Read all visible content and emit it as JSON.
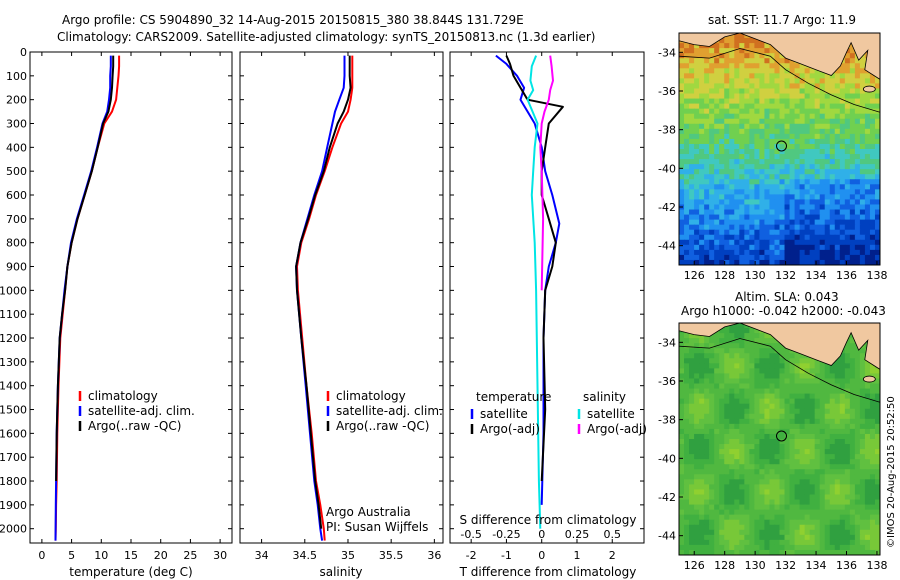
{
  "header": {
    "line1": "Argo profile: CS 5904890_32 14-Aug-2015 20150815_380 38.844S 131.729E",
    "line2": "Climatology: CARS2009. Satellite-adjusted climatology: synTS_20150813.nc (1.3d earlier)"
  },
  "colors": {
    "climatology": "#ff0000",
    "satellite": "#0000ff",
    "argo": "#000000",
    "salinity_satellite": "#00e5e5",
    "salinity_argo": "#ff00ff",
    "land": "#f0c8a0"
  },
  "chart_data": [
    {
      "type": "line",
      "name": "temperature-profile",
      "xlabel": "temperature (deg C)",
      "xlim": [
        -2,
        32
      ],
      "xticks": [
        "0",
        "5",
        "10",
        "15",
        "20",
        "25",
        "30"
      ],
      "ylim": [
        2060,
        0
      ],
      "yticks": [
        "0",
        "100",
        "200",
        "300",
        "400",
        "500",
        "600",
        "700",
        "800",
        "900",
        "1000",
        "1100",
        "1200",
        "1300",
        "1400",
        "1500",
        "1600",
        "1700",
        "1800",
        "1900",
        "2000"
      ],
      "legend": [
        "climatology",
        "satellite-adj. clim.",
        "Argo(..raw -QC)"
      ],
      "series": [
        {
          "name": "climatology",
          "color": "#ff0000",
          "x": [
            13.0,
            13.0,
            12.9,
            12.7,
            12.5,
            11.8,
            10.5,
            9.4,
            8.4,
            7.2,
            6.0,
            5.0,
            4.3,
            3.9,
            3.5,
            3.1,
            2.8,
            2.6,
            2.5,
            2.4,
            2.35,
            2.3
          ],
          "y": [
            15,
            60,
            100,
            150,
            200,
            250,
            300,
            400,
            500,
            600,
            700,
            800,
            900,
            1000,
            1100,
            1200,
            1400,
            1600,
            1800,
            1900,
            2000,
            2050
          ]
        },
        {
          "name": "satellite-adj. clim.",
          "color": "#0000ff",
          "x": [
            11.6,
            11.6,
            11.5,
            11.5,
            11.3,
            11.0,
            10.2,
            9.3,
            8.3,
            7.1,
            5.9,
            4.9,
            4.3,
            3.8,
            3.4,
            3.0,
            2.7,
            2.5,
            2.4,
            2.35,
            2.3
          ],
          "y": [
            15,
            60,
            100,
            150,
            200,
            250,
            300,
            400,
            500,
            600,
            700,
            800,
            900,
            1000,
            1100,
            1200,
            1400,
            1600,
            1800,
            1900,
            2050
          ]
        },
        {
          "name": "Argo(..raw -QC)",
          "color": "#000000",
          "x": [
            12.0,
            12.0,
            11.9,
            11.8,
            11.6,
            11.2,
            10.3,
            9.4,
            8.4,
            7.2,
            6.0,
            5.0,
            4.3,
            3.9,
            3.4,
            3.0,
            2.7,
            2.5,
            2.4
          ],
          "y": [
            15,
            60,
            100,
            150,
            200,
            250,
            300,
            400,
            500,
            600,
            700,
            800,
            900,
            1000,
            1100,
            1200,
            1400,
            1600,
            1800
          ]
        }
      ]
    },
    {
      "type": "line",
      "name": "salinity-profile",
      "xlabel": "salinity",
      "xlim": [
        33.75,
        36.1
      ],
      "xticks": [
        "34",
        "34.5",
        "35",
        "35.5",
        "36"
      ],
      "ylim": [
        2060,
        0
      ],
      "legend": [
        "climatology",
        "satellite-adj. clim.",
        "Argo(..raw -QC)"
      ],
      "annotation": [
        "Argo Australia",
        "PI: Susan Wijffels"
      ],
      "series": [
        {
          "name": "climatology",
          "color": "#ff0000",
          "x": [
            35.05,
            35.05,
            35.05,
            35.03,
            35.0,
            34.92,
            34.82,
            34.73,
            34.63,
            34.55,
            34.46,
            34.41,
            34.42,
            34.47,
            34.52,
            34.58,
            34.63,
            34.68,
            34.72,
            34.73
          ],
          "y": [
            15,
            100,
            150,
            200,
            250,
            300,
            400,
            500,
            600,
            700,
            800,
            900,
            1000,
            1200,
            1400,
            1600,
            1800,
            1900,
            2000,
            2050
          ]
        },
        {
          "name": "satellite-adj. clim.",
          "color": "#0000ff",
          "x": [
            34.96,
            34.96,
            34.95,
            34.9,
            34.85,
            34.82,
            34.76,
            34.7,
            34.61,
            34.53,
            34.45,
            34.4,
            34.41,
            34.46,
            34.51,
            34.56,
            34.61,
            34.65,
            34.68,
            34.7
          ],
          "y": [
            15,
            100,
            150,
            200,
            250,
            300,
            400,
            500,
            600,
            700,
            800,
            900,
            1000,
            1200,
            1400,
            1600,
            1800,
            1900,
            2000,
            2050
          ]
        },
        {
          "name": "Argo(..raw -QC)",
          "color": "#000000",
          "x": [
            35.02,
            35.02,
            35.03,
            35.0,
            34.95,
            34.88,
            34.79,
            34.72,
            34.62,
            34.54,
            34.45,
            34.4,
            34.41,
            34.46,
            34.52,
            34.57,
            34.62,
            34.66,
            34.69
          ],
          "y": [
            15,
            100,
            150,
            200,
            250,
            300,
            400,
            500,
            600,
            700,
            800,
            900,
            1000,
            1200,
            1400,
            1600,
            1800,
            1900,
            2000
          ]
        }
      ]
    },
    {
      "type": "line",
      "name": "difference-profile",
      "xlabel": "T difference from climatology",
      "x2label": "S difference from climatology",
      "xlim": [
        -2.6,
        2.9
      ],
      "xticks": [
        "-2",
        "-1",
        "0",
        "1",
        "2"
      ],
      "x2lim": [
        -0.65,
        0.725
      ],
      "x2ticks": [
        "-0.5",
        "-0.25",
        "0",
        "0.25",
        "0.5"
      ],
      "ylim": [
        2060,
        0
      ],
      "legend": [
        {
          "group": "temperature",
          "items": [
            "satellite",
            "Argo(-adj)"
          ]
        },
        {
          "group": "salinity",
          "items": [
            "satellite",
            "Argo(-adj)"
          ]
        }
      ],
      "series": [
        {
          "name": "temperature satellite",
          "group": "temperature",
          "color": "#0000ff",
          "axis": "T",
          "x": [
            -1.3,
            -1.0,
            -0.7,
            -0.5,
            -0.6,
            -0.4,
            -0.2,
            0.0,
            0.1,
            0.3,
            0.5,
            0.4,
            0.2,
            0.1,
            0.05,
            0.05,
            0.0
          ],
          "y": [
            15,
            50,
            100,
            150,
            200,
            250,
            300,
            400,
            500,
            600,
            720,
            800,
            900,
            1000,
            1200,
            1600,
            1900
          ]
        },
        {
          "name": "temperature Argo(-adj)",
          "group": "temperature",
          "color": "#000000",
          "axis": "T",
          "x": [
            -1.0,
            -0.9,
            -0.8,
            -0.6,
            -0.4,
            0.6,
            0.2,
            0.1,
            0.0,
            0.0,
            0.2,
            0.4,
            0.3,
            0.1,
            0.05,
            0.1,
            0.0
          ],
          "y": [
            15,
            50,
            100,
            150,
            200,
            230,
            300,
            400,
            500,
            600,
            700,
            800,
            900,
            1000,
            1200,
            1500,
            1800
          ]
        },
        {
          "name": "salinity satellite",
          "group": "salinity",
          "color": "#00e5e5",
          "axis": "S",
          "x": [
            -0.04,
            -0.07,
            -0.08,
            -0.06,
            -0.1,
            -0.03,
            -0.05,
            -0.06,
            -0.07,
            -0.05,
            -0.04,
            -0.03,
            -0.02,
            -0.01
          ],
          "y": [
            15,
            60,
            120,
            160,
            200,
            300,
            400,
            500,
            600,
            800,
            1000,
            1400,
            1800,
            2000
          ]
        },
        {
          "name": "salinity Argo(-adj)",
          "group": "salinity",
          "color": "#ff00ff",
          "axis": "S",
          "x": [
            0.06,
            0.07,
            0.08,
            0.06,
            0.05,
            0.02,
            0.0,
            -0.01,
            0.0,
            0.01,
            0.0
          ],
          "y": [
            15,
            60,
            120,
            160,
            200,
            250,
            300,
            400,
            500,
            700,
            1000
          ]
        }
      ]
    },
    {
      "type": "heatmap",
      "name": "sst-map",
      "title": "sat. SST: 11.7  Argo: 11.9",
      "xlim": [
        125,
        138.2
      ],
      "ylim": [
        -45,
        -33
      ],
      "xticks": [
        "126",
        "128",
        "130",
        "132",
        "134",
        "136",
        "138"
      ],
      "yticks": [
        "-34",
        "-36",
        "-38",
        "-40",
        "-42",
        "-44"
      ],
      "marker": {
        "lon": 131.729,
        "lat": -38.844
      }
    },
    {
      "type": "heatmap",
      "name": "sla-map",
      "title": "Altim. SLA: 0.043",
      "subtitle": "Argo h1000: -0.042 h2000: -0.043",
      "xlim": [
        125,
        138.2
      ],
      "ylim": [
        -45,
        -33
      ],
      "xticks": [
        "126",
        "128",
        "130",
        "132",
        "134",
        "136",
        "138"
      ],
      "yticks": [
        "-34",
        "-36",
        "-38",
        "-40",
        "-42",
        "-44"
      ],
      "marker": {
        "lon": 131.729,
        "lat": -38.844
      }
    }
  ],
  "footer": {
    "credit": "©IMOS 20-Aug-2015 20:52:50"
  }
}
